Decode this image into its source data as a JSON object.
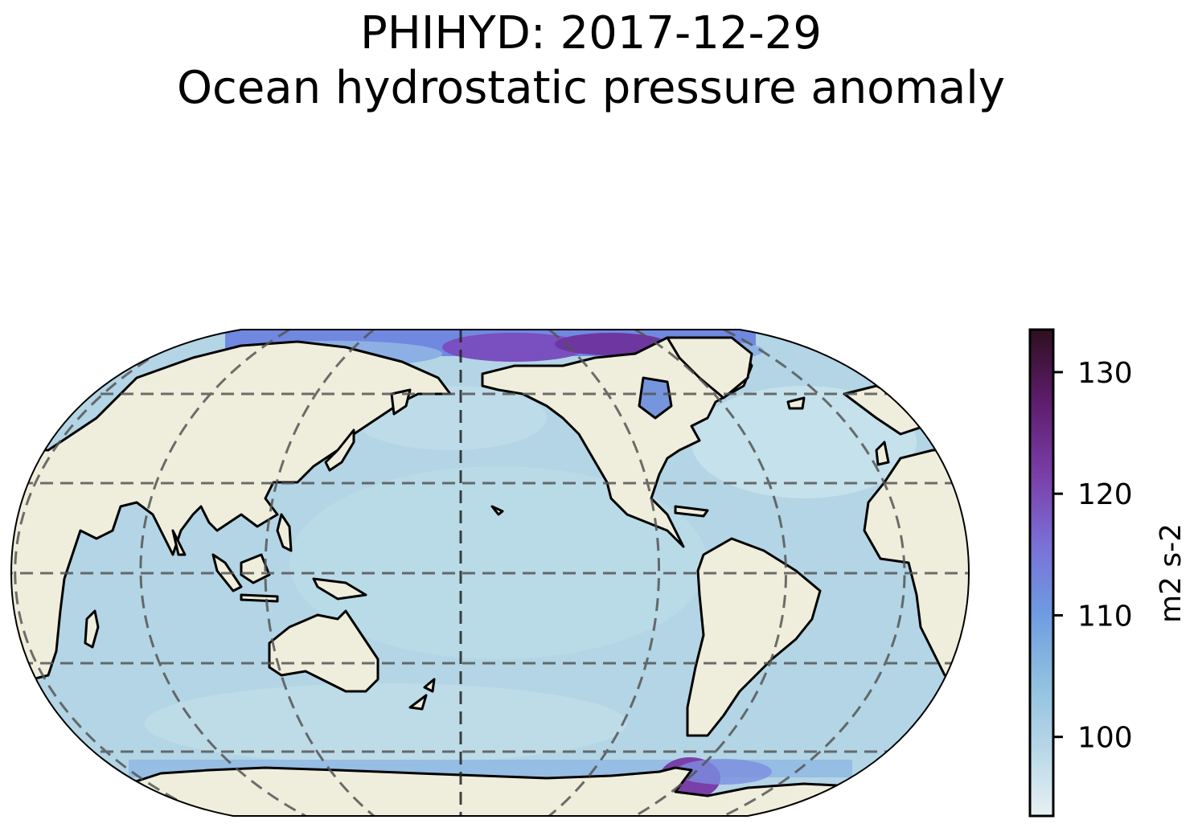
{
  "title": {
    "line1": "PHIHYD: 2017-12-29",
    "line2": "Ocean hydrostatic pressure anomaly"
  },
  "colorbar": {
    "label": "m2 s-2",
    "min": 93.5,
    "max": 133.5,
    "ticks": [
      {
        "value": 100,
        "label": "100"
      },
      {
        "value": 110,
        "label": "110"
      },
      {
        "value": 120,
        "label": "120"
      },
      {
        "value": 130,
        "label": "130"
      }
    ],
    "colors": [
      "#e6f0f2",
      "#b7d7e6",
      "#8ebfe0",
      "#6e9ae0",
      "#7a6fd6",
      "#7a3fa8",
      "#5e1d6e",
      "#2e0f1e"
    ]
  },
  "map": {
    "projection": "Robinson",
    "central_longitude": 180,
    "land_color": "#efeedc",
    "ocean_color": "#b3d5e5",
    "coastline_color": "#000000",
    "gridline_style": "dashed",
    "gridline_color": "#555555"
  },
  "chart_data": {
    "type": "heatmap",
    "variable": "PHIHYD",
    "date": "2017-12-29",
    "units": "m2 s-2",
    "value_range": [
      93.5,
      133.5
    ],
    "typical_ocean_value": 101,
    "regions": [
      {
        "name": "Arctic Ocean",
        "approx_value": 112
      },
      {
        "name": "Canadian Arctic Archipelago",
        "approx_value": 125
      },
      {
        "name": "Hudson Bay",
        "approx_value": 108
      },
      {
        "name": "Weddell Sea",
        "approx_value": 122
      },
      {
        "name": "Southern Ocean coast",
        "approx_value": 106
      },
      {
        "name": "North Atlantic",
        "approx_value": 97
      },
      {
        "name": "Pacific Ocean",
        "approx_value": 101
      },
      {
        "name": "Indian Ocean",
        "approx_value": 101
      }
    ]
  }
}
